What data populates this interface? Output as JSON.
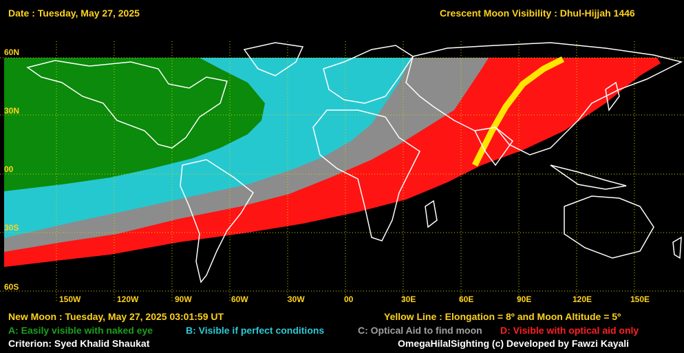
{
  "header": {
    "date": "Date : Tuesday, May 27, 2025",
    "title": "Crescent Moon Visibility : Dhul-Hijjah  1446"
  },
  "map": {
    "lat_labels": [
      "60N",
      "30N",
      "00",
      "30S",
      "60S"
    ],
    "lon_labels": [
      "150W",
      "120W",
      "90W",
      "60W",
      "30W",
      "00",
      "30E",
      "60E",
      "90E",
      "120E",
      "150E"
    ],
    "zones": [
      {
        "zone": "A",
        "color": "#0b8a0b"
      },
      {
        "zone": "B",
        "color": "#26c8d0"
      },
      {
        "zone": "C",
        "color": "#8c8c8c"
      },
      {
        "zone": "D",
        "color": "#ff1414"
      }
    ],
    "line_color": "#ffe600"
  },
  "footer": {
    "new_moon": "New Moon : Tuesday, May 27, 2025  03:01:59  UT",
    "yellow_line": "Yellow Line : Elongation = 8º  and Moon Altitude = 5º",
    "legend_a": "A: Easily visible with naked eye",
    "legend_b": "B: Visible if perfect conditions",
    "legend_c": "C: Optical Aid to find moon",
    "legend_d": "D: Visible with optical aid only",
    "criterion": "Criterion: Syed Khalid Shaukat",
    "credits": "OmegaHilalSighting  (c)  Developed by Fawzi Kayali"
  }
}
